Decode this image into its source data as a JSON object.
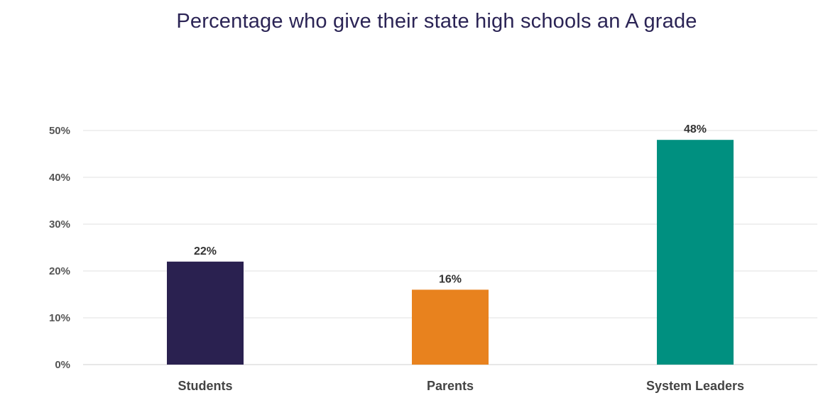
{
  "chart_data": {
    "type": "bar",
    "title": "Percentage who give their state high schools an A grade",
    "categories": [
      "Students",
      "Parents",
      "System Leaders"
    ],
    "values": [
      22,
      16,
      48
    ],
    "data_labels": [
      "22%",
      "16%",
      "48%"
    ],
    "colors": [
      "#2a2150",
      "#e8821e",
      "#009080"
    ],
    "ylim": [
      0,
      50
    ],
    "yticks": [
      0,
      10,
      20,
      30,
      40,
      50
    ],
    "ytick_labels": [
      "0%",
      "10%",
      "20%",
      "30%",
      "40%",
      "50%"
    ],
    "grid": true,
    "legend": "none"
  }
}
